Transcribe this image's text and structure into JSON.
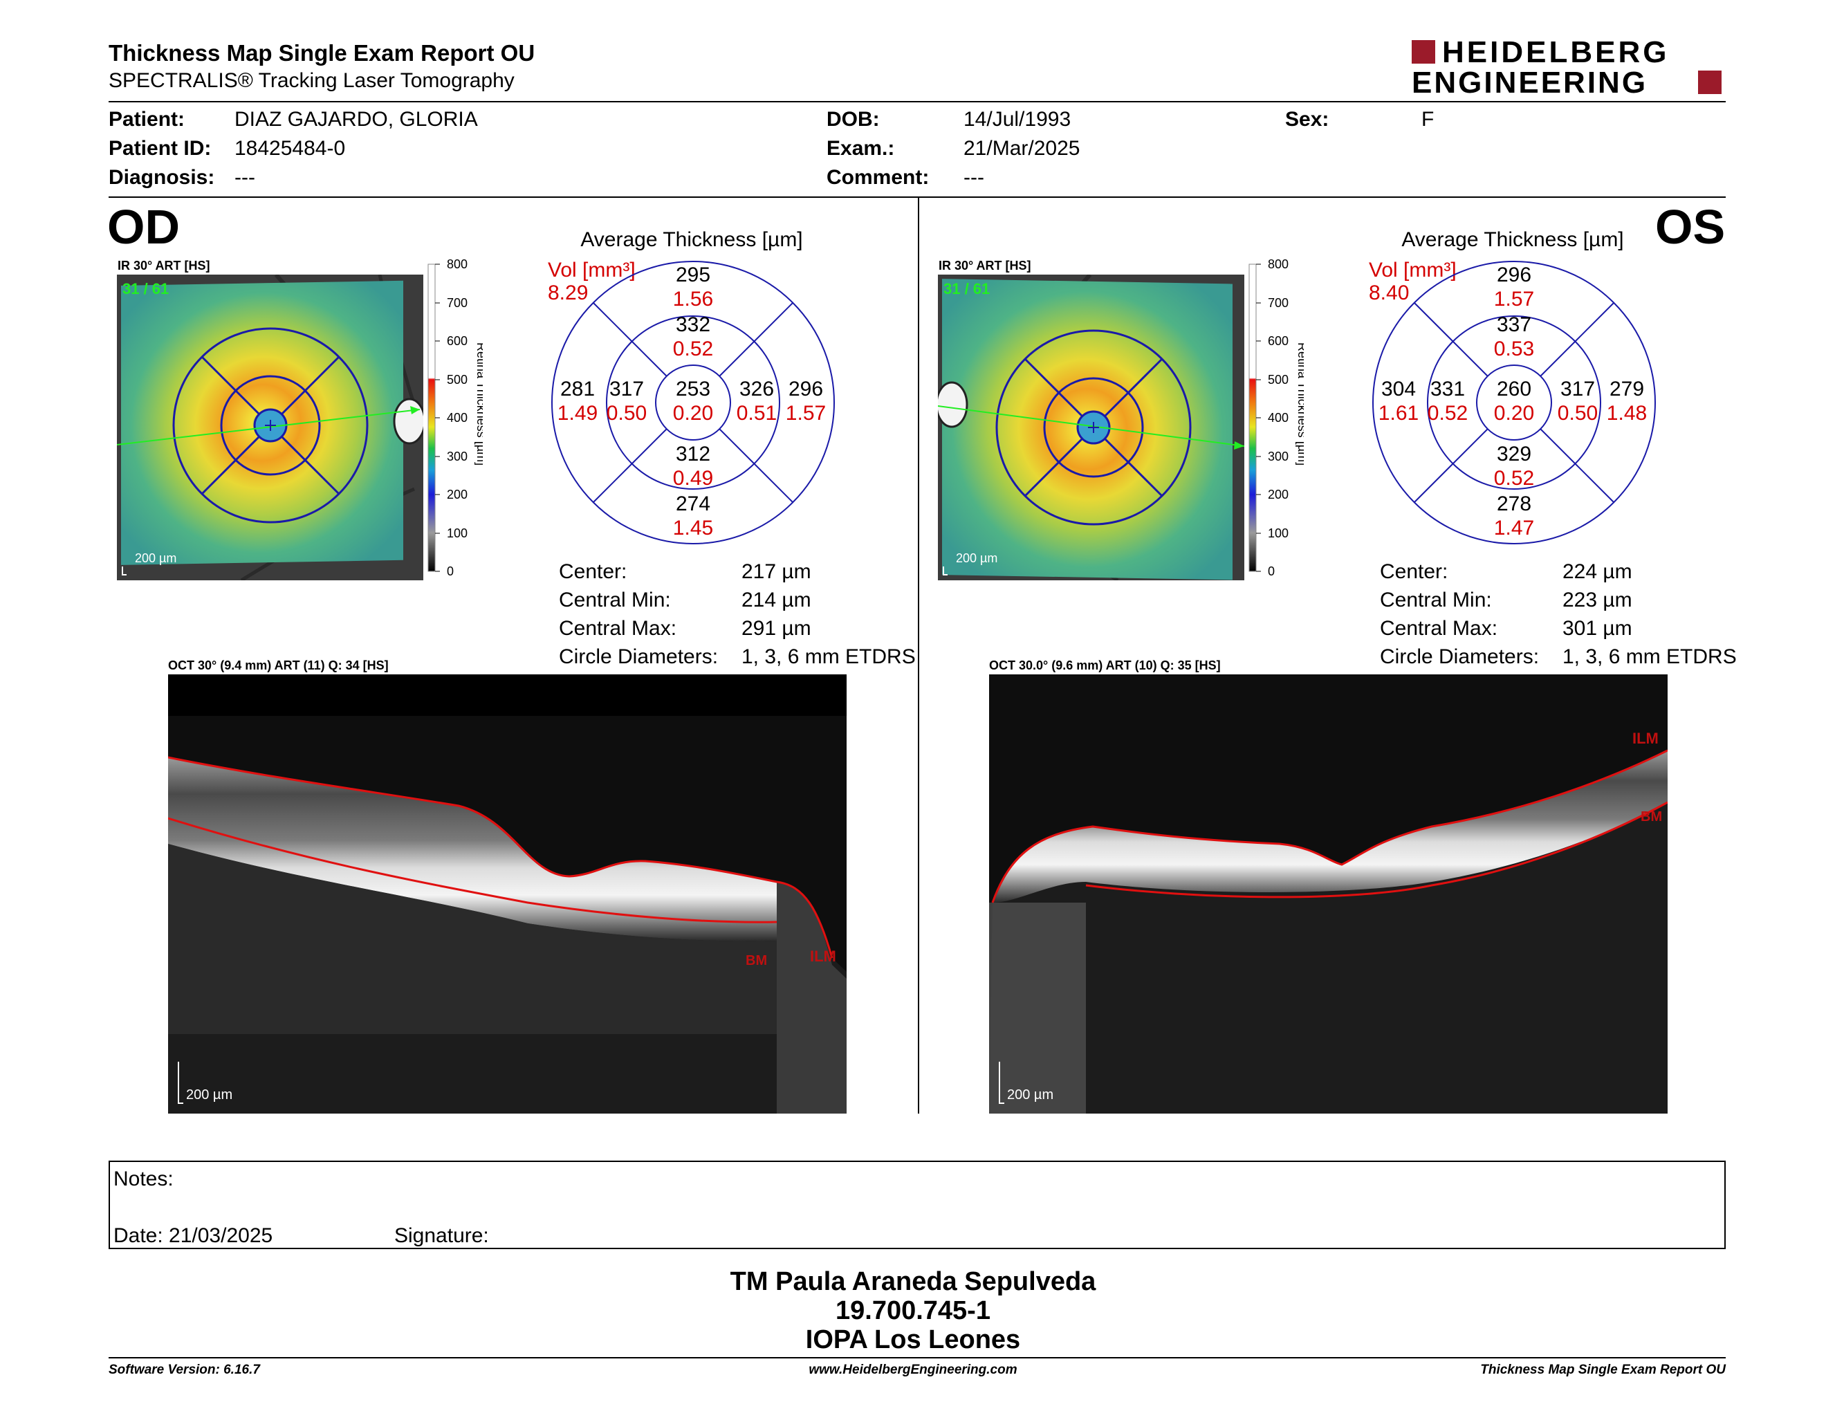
{
  "header": {
    "title": "Thickness Map Single Exam Report OU",
    "subtitle": "SPECTRALIS® Tracking Laser Tomography",
    "logo_line1": "HEIDELBERG",
    "logo_line2": "ENGINEERING"
  },
  "patient": {
    "patient_label": "Patient:",
    "patient_value": "DIAZ GAJARDO, GLORIA",
    "id_label": "Patient ID:",
    "id_value": "18425484-0",
    "diagnosis_label": "Diagnosis:",
    "diagnosis_value": "---",
    "dob_label": "DOB:",
    "dob_value": "14/Jul/1993",
    "exam_label": "Exam.:",
    "exam_value": "21/Mar/2025",
    "comment_label": "Comment:",
    "comment_value": "---",
    "sex_label": "Sex:",
    "sex_value": "F"
  },
  "scale": {
    "ticks": [
      "800",
      "700",
      "600",
      "500",
      "400",
      "300",
      "200",
      "100",
      "0"
    ],
    "label": "Retina Thickness [µm]"
  },
  "od": {
    "eye": "OD",
    "ir_label": "IR 30° ART [HS]",
    "frame": "31 / 61",
    "scalebar": "200 µm",
    "avg_title": "Average Thickness [µm]",
    "vol_label": "Vol [mm³]",
    "vol_value": "8.29",
    "sectors": {
      "center": {
        "t": "253",
        "v": "0.20"
      },
      "inner_sup": {
        "t": "332",
        "v": "0.52"
      },
      "inner_inf": {
        "t": "312",
        "v": "0.49"
      },
      "inner_left": {
        "t": "317",
        "v": "0.50"
      },
      "inner_right": {
        "t": "326",
        "v": "0.51"
      },
      "outer_sup": {
        "t": "295",
        "v": "1.56"
      },
      "outer_inf": {
        "t": "274",
        "v": "1.45"
      },
      "outer_left": {
        "t": "281",
        "v": "1.49"
      },
      "outer_right": {
        "t": "296",
        "v": "1.57"
      }
    },
    "stats": {
      "center_label": "Center:",
      "center_value": "217 µm",
      "min_label": "Central Min:",
      "min_value": "214 µm",
      "max_label": "Central Max:",
      "max_value": "291 µm",
      "diam_label": "Circle Diameters:",
      "diam_value": "1, 3, 6 mm ETDRS"
    },
    "oct_label": "OCT 30° (9.4 mm) ART (11) Q: 34 [HS]",
    "oct_scalebar": "200 µm",
    "ilm": "ILM",
    "bm": "BM"
  },
  "os": {
    "eye": "OS",
    "ir_label": "IR 30° ART [HS]",
    "frame": "31 / 61",
    "scalebar": "200 µm",
    "avg_title": "Average Thickness [µm]",
    "vol_label": "Vol [mm³]",
    "vol_value": "8.40",
    "sectors": {
      "center": {
        "t": "260",
        "v": "0.20"
      },
      "inner_sup": {
        "t": "337",
        "v": "0.53"
      },
      "inner_inf": {
        "t": "329",
        "v": "0.52"
      },
      "inner_left": {
        "t": "331",
        "v": "0.52"
      },
      "inner_right": {
        "t": "317",
        "v": "0.50"
      },
      "outer_sup": {
        "t": "296",
        "v": "1.57"
      },
      "outer_inf": {
        "t": "278",
        "v": "1.47"
      },
      "outer_left": {
        "t": "304",
        "v": "1.61"
      },
      "outer_right": {
        "t": "279",
        "v": "1.48"
      }
    },
    "stats": {
      "center_label": "Center:",
      "center_value": "224 µm",
      "min_label": "Central Min:",
      "min_value": "223 µm",
      "max_label": "Central Max:",
      "max_value": "301 µm",
      "diam_label": "Circle Diameters:",
      "diam_value": "1, 3, 6 mm ETDRS"
    },
    "oct_label": "OCT 30.0° (9.6 mm) ART (10) Q: 35 [HS]",
    "oct_scalebar": "200 µm",
    "ilm": "ILM",
    "bm": "BM"
  },
  "notes": {
    "notes_label": "Notes:",
    "date_label": "Date: 21/03/2025",
    "signature_label": "Signature:"
  },
  "signature": {
    "name": "TM Paula Araneda Sepulveda",
    "id": "19.700.745-1",
    "org": "IOPA Los Leones"
  },
  "footer": {
    "software": "Software Version: 6.16.7",
    "website": "www.HeidelbergEngineering.com",
    "report": "Thickness Map Single Exam Report OU"
  },
  "colors": {
    "grid_blue": "#1a1aa8",
    "red_text": "#d40000",
    "logo_red": "#9b1b2a"
  }
}
